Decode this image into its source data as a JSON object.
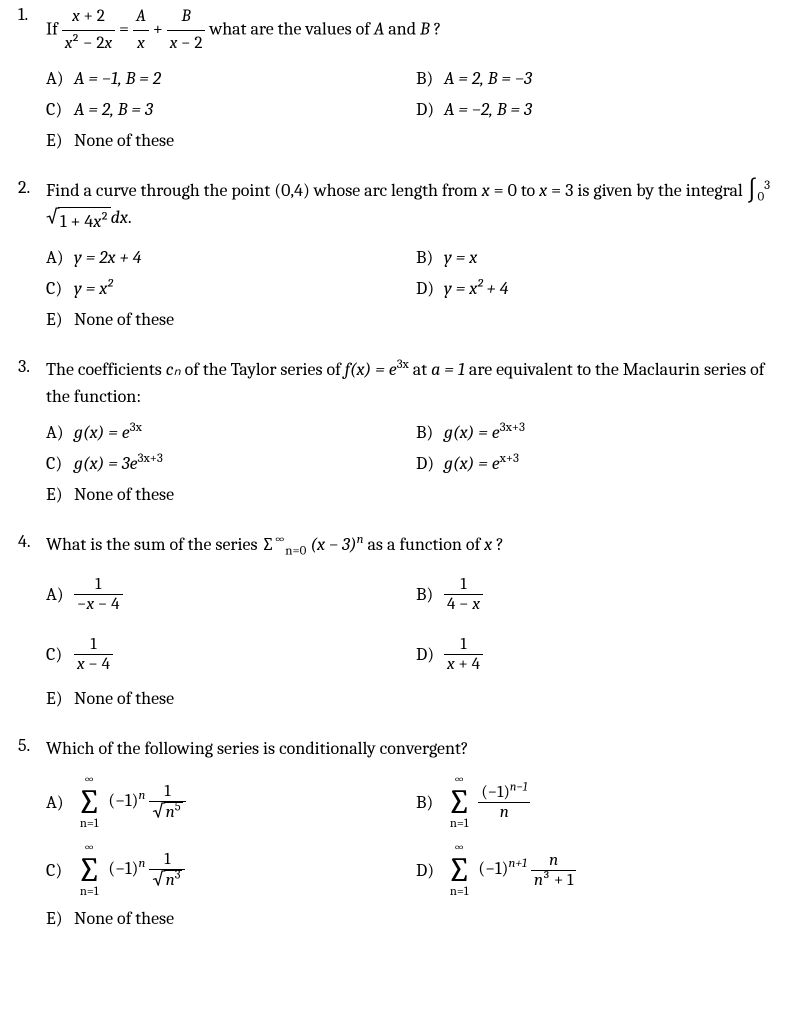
{
  "questions": [
    {
      "num": "1.",
      "stem_parts": [
        "If ",
        " = ",
        " + ",
        " what are the values of ",
        " and ",
        "?"
      ],
      "frac1": {
        "num": "x + 2",
        "den": "x² − 2x",
        "num_ital": "x",
        "den_ital": "x"
      },
      "fracA": {
        "num": "A",
        "den": "x"
      },
      "fracB": {
        "num": "B",
        "den": "x − 2"
      },
      "var_a": "A",
      "var_b": "B",
      "choices": {
        "A": "A = −1, B = 2",
        "B": "A = 2, B = −3",
        "C": "A = 2, B = 3",
        "D": "A = −2, B = 3",
        "E": "None of these"
      }
    },
    {
      "num": "2.",
      "stem1": "Find a curve through the point (0,4) whose arc length from ",
      "stem2": " = 0 to ",
      "stem3": " = 3 is given by the integral ",
      "stem_end": ".",
      "int_bounds": {
        "low": "0",
        "high": "3"
      },
      "sqrt_body": "1 + 4x²",
      "dx": "dx",
      "varx": "x",
      "choices": {
        "A": "y = 2x + 4",
        "B": "y = x",
        "C": "y = x²",
        "D": "y = x² + 4",
        "E": "None of these"
      }
    },
    {
      "num": "3.",
      "stem1": "The coefficients ",
      "cn": "cₙ",
      "stem2": " of the Taylor series of ",
      "fx": "f(x) = e",
      "exp1": "3x",
      "stem3": " at ",
      "a_eq": "a = 1",
      "stem4": " are equivalent to the Maclaurin series of the function:",
      "choices": {
        "A": {
          "pre": "g(x) = e",
          "sup": "3x"
        },
        "B": {
          "pre": "g(x) = e",
          "sup": "3x+3"
        },
        "C": {
          "pre": "g(x) = 3e",
          "sup": "3x+3"
        },
        "D": {
          "pre": "g(x) = e",
          "sup": "x+3"
        },
        "E": "None of these"
      }
    },
    {
      "num": "4.",
      "stem1": "What is the sum of the series ",
      "sigma_bot": "n=0",
      "sigma_top": "∞",
      "term": "(x − 3)",
      "term_sup": "n",
      "stem2": " as a function of ",
      "varx": "x",
      "stem3": "?",
      "choices": {
        "A": {
          "num": "1",
          "den": "−x − 4"
        },
        "B": {
          "num": "1",
          "den": "4 − x"
        },
        "C": {
          "num": "1",
          "den": "x − 4"
        },
        "D": {
          "num": "1",
          "den": "x + 4"
        },
        "E": "None of these"
      }
    },
    {
      "num": "5.",
      "stem": "Which of the following series is conditionally convergent?",
      "sigma_top": "∞",
      "sigma_bot": "n=1",
      "choices": {
        "A": {
          "coef": "(−1)",
          "coef_sup": "n",
          "frac_num": "1",
          "frac_den_sqrt": "n",
          "frac_den_sup": "5"
        },
        "B": {
          "frac_num": "(−1)",
          "frac_num_sup": "n−1",
          "frac_den": "n"
        },
        "C": {
          "coef": "(−1)",
          "coef_sup": "n",
          "frac_num": "1",
          "frac_den_sqrt": "n",
          "frac_den_sup": "3"
        },
        "D": {
          "coef": "(−1)",
          "coef_sup": "n+1",
          "frac_num": "n",
          "frac_den": "n³ + 1"
        },
        "E": "None of these"
      }
    }
  ],
  "labels": {
    "A": "A)",
    "B": "B)",
    "C": "C)",
    "D": "D)",
    "E": "E)"
  }
}
